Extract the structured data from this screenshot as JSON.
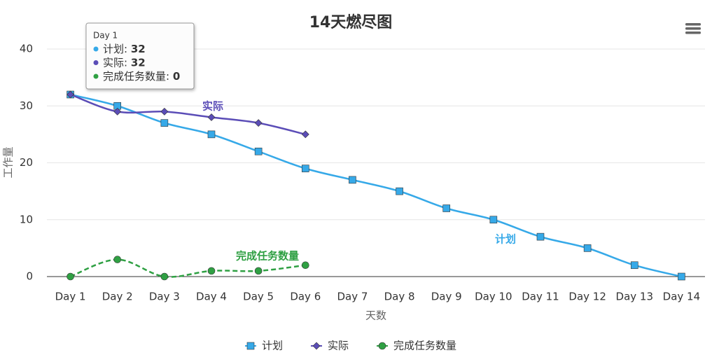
{
  "chart_data": {
    "type": "line",
    "title": "14天燃尽图",
    "categories": [
      "Day 1",
      "Day 2",
      "Day 3",
      "Day 4",
      "Day 5",
      "Day 6",
      "Day 7",
      "Day 8",
      "Day 9",
      "Day 10",
      "Day 11",
      "Day 12",
      "Day 13",
      "Day 14"
    ],
    "series": [
      {
        "name": "计划",
        "color": "#36a9e8",
        "marker": "square",
        "dash": false,
        "values": [
          32,
          30,
          27,
          25,
          22,
          19,
          17,
          15,
          12,
          10,
          7,
          5,
          2,
          0
        ]
      },
      {
        "name": "实际",
        "color": "#5b4db7",
        "marker": "diamond",
        "dash": false,
        "values": [
          32,
          29,
          29,
          28,
          27,
          25,
          null,
          null,
          null,
          null,
          null,
          null,
          null,
          null
        ]
      },
      {
        "name": "完成任务数量",
        "color": "#2fa043",
        "marker": "circle",
        "dash": true,
        "values": [
          0,
          3,
          0,
          1,
          1,
          2,
          null,
          null,
          null,
          null,
          null,
          null,
          null,
          null
        ]
      }
    ],
    "ylim": [
      0,
      40
    ],
    "yticks": [
      0,
      10,
      20,
      30,
      40
    ],
    "grid": true,
    "xlabel": "天数",
    "ylabel": "工作量",
    "legend": "bottom"
  }
}
